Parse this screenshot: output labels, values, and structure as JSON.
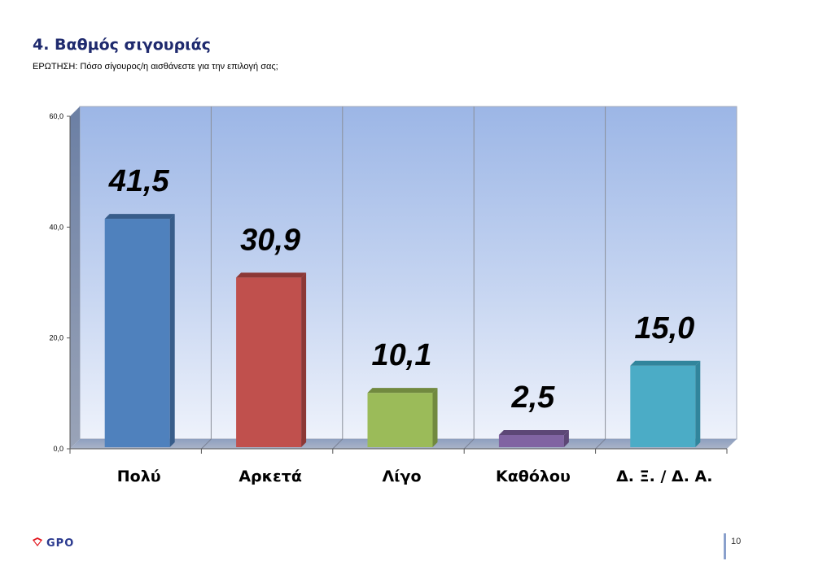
{
  "header": {
    "title": "4. Βαθμός σιγουριάς",
    "question": "ΕΡΩΤΗΣΗ: Πόσο σίγουρος/η αισθάνεστε για την επιλογή σας;"
  },
  "chart_data": {
    "type": "bar",
    "categories": [
      "Πολύ",
      "Αρκετά",
      "Λίγο",
      "Καθόλου",
      "Δ. Ξ. / Δ. Α."
    ],
    "values": [
      41.5,
      30.9,
      10.1,
      2.5,
      15.0
    ],
    "data_labels": [
      "41,5",
      "30,9",
      "10,1",
      "2,5",
      "15,0"
    ],
    "y_ticks": [
      "0,0",
      "20,0",
      "40,0",
      "60,0"
    ],
    "y_tick_values": [
      0,
      20,
      40,
      60
    ],
    "ylim": [
      0,
      60
    ],
    "colors": [
      "#4f81bd",
      "#c0504d",
      "#9bbb59",
      "#8064a2",
      "#4bacc6"
    ],
    "side_colors": [
      "#385d8a",
      "#8c3836",
      "#71893f",
      "#5c4776",
      "#31859c"
    ],
    "grid": "vertical",
    "style": "3d"
  },
  "footer": {
    "logo_text": "GPO",
    "page_number": "10"
  }
}
